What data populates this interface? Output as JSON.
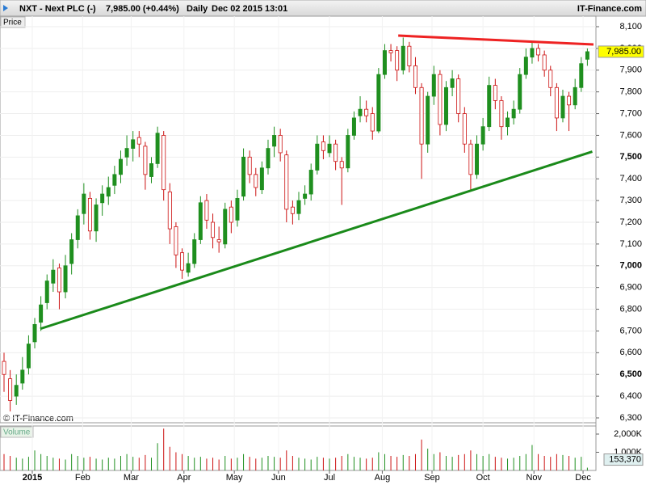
{
  "header": {
    "symbol": "NXT - Next PLC (-)",
    "quote": "7,985.00 (+0.44%)",
    "period": "Daily",
    "datetime": "Dec 02 2015 13:01",
    "site": "IT-Finance.com",
    "price_label": "Price",
    "volume_label": "Volume",
    "watermark": "© IT-Finance.com"
  },
  "chart_data": {
    "type": "candlestick",
    "xlim": [
      0,
      96
    ],
    "xticks": [
      {
        "value": 4.6,
        "label": "2015"
      },
      {
        "value": 12.8,
        "label": "Feb"
      },
      {
        "value": 20.7,
        "label": "Mar"
      },
      {
        "value": 29.3,
        "label": "Apr"
      },
      {
        "value": 37.5,
        "label": "May"
      },
      {
        "value": 44.7,
        "label": "Jun"
      },
      {
        "value": 53,
        "label": "Jul"
      },
      {
        "value": 61.6,
        "label": "Aug"
      },
      {
        "value": 69.7,
        "label": "Sep"
      },
      {
        "value": 78,
        "label": "Oct"
      },
      {
        "value": 86.3,
        "label": "Nov"
      },
      {
        "value": 94.3,
        "label": "Dec"
      }
    ],
    "ylim": [
      6300,
      8100
    ],
    "yticks": [
      {
        "value": 6300,
        "label": "6,300"
      },
      {
        "value": 6400,
        "label": "6,400"
      },
      {
        "value": 6500,
        "label": "6,500"
      },
      {
        "value": 6600,
        "label": "6,600"
      },
      {
        "value": 6700,
        "label": "6,700"
      },
      {
        "value": 6800,
        "label": "6,800"
      },
      {
        "value": 6900,
        "label": "6,900"
      },
      {
        "value": 7000,
        "label": "7,000"
      },
      {
        "value": 7100,
        "label": "7,100"
      },
      {
        "value": 7200,
        "label": "7,200"
      },
      {
        "value": 7300,
        "label": "7,300"
      },
      {
        "value": 7400,
        "label": "7,400"
      },
      {
        "value": 7500,
        "label": "7,500"
      },
      {
        "value": 7600,
        "label": "7,600"
      },
      {
        "value": 7700,
        "label": "7,700"
      },
      {
        "value": 7800,
        "label": "7,800"
      },
      {
        "value": 7900,
        "label": "7,900"
      },
      {
        "value": 8000,
        "label": "8,000"
      },
      {
        "value": 8100,
        "label": "8,100"
      }
    ],
    "up_color": "#1f8f1f",
    "down_color": "#cc1111",
    "last_price_label": "7,985.00",
    "ohlc": [
      [
        6560,
        6600,
        6420,
        6500
      ],
      [
        6480,
        6520,
        6330,
        6380
      ],
      [
        6400,
        6500,
        6360,
        6450
      ],
      [
        6460,
        6580,
        6430,
        6520
      ],
      [
        6530,
        6680,
        6500,
        6640
      ],
      [
        6650,
        6760,
        6620,
        6730
      ],
      [
        6740,
        6860,
        6700,
        6820
      ],
      [
        6830,
        6960,
        6800,
        6930
      ],
      [
        6920,
        7030,
        6880,
        6980
      ],
      [
        6990,
        7010,
        6800,
        6880
      ],
      [
        6880,
        7050,
        6850,
        7000
      ],
      [
        7010,
        7150,
        6960,
        7120
      ],
      [
        7120,
        7260,
        7080,
        7230
      ],
      [
        7240,
        7380,
        7190,
        7330
      ],
      [
        7310,
        7340,
        7120,
        7160
      ],
      [
        7160,
        7310,
        7110,
        7280
      ],
      [
        7290,
        7370,
        7230,
        7330
      ],
      [
        7320,
        7410,
        7280,
        7360
      ],
      [
        7370,
        7460,
        7330,
        7420
      ],
      [
        7420,
        7530,
        7380,
        7490
      ],
      [
        7500,
        7600,
        7460,
        7540
      ],
      [
        7540,
        7620,
        7480,
        7580
      ],
      [
        7590,
        7620,
        7500,
        7560
      ],
      [
        7550,
        7570,
        7350,
        7420
      ],
      [
        7410,
        7500,
        7380,
        7470
      ],
      [
        7470,
        7640,
        7450,
        7610
      ],
      [
        7600,
        7620,
        7300,
        7350
      ],
      [
        7340,
        7380,
        7100,
        7170
      ],
      [
        7180,
        7200,
        6990,
        7050
      ],
      [
        7060,
        7080,
        6940,
        6980
      ],
      [
        6970,
        7060,
        6950,
        7010
      ],
      [
        7010,
        7150,
        6990,
        7120
      ],
      [
        7120,
        7320,
        7100,
        7290
      ],
      [
        7300,
        7330,
        7170,
        7210
      ],
      [
        7200,
        7240,
        7080,
        7130
      ],
      [
        7120,
        7180,
        7060,
        7110
      ],
      [
        7100,
        7290,
        7080,
        7260
      ],
      [
        7270,
        7300,
        7150,
        7200
      ],
      [
        7210,
        7350,
        7180,
        7310
      ],
      [
        7320,
        7540,
        7300,
        7500
      ],
      [
        7500,
        7530,
        7380,
        7420
      ],
      [
        7420,
        7450,
        7320,
        7360
      ],
      [
        7350,
        7480,
        7330,
        7450
      ],
      [
        7450,
        7580,
        7420,
        7540
      ],
      [
        7550,
        7640,
        7500,
        7600
      ],
      [
        7600,
        7630,
        7480,
        7520
      ],
      [
        7510,
        7530,
        7200,
        7260
      ],
      [
        7270,
        7300,
        7190,
        7240
      ],
      [
        7240,
        7340,
        7210,
        7300
      ],
      [
        7310,
        7370,
        7280,
        7330
      ],
      [
        7330,
        7470,
        7300,
        7440
      ],
      [
        7440,
        7600,
        7420,
        7560
      ],
      [
        7570,
        7600,
        7490,
        7530
      ],
      [
        7520,
        7600,
        7500,
        7560
      ],
      [
        7560,
        7580,
        7440,
        7480
      ],
      [
        7480,
        7500,
        7280,
        7450
      ],
      [
        7450,
        7630,
        7430,
        7600
      ],
      [
        7600,
        7710,
        7580,
        7680
      ],
      [
        7690,
        7780,
        7660,
        7720
      ],
      [
        7720,
        7760,
        7660,
        7690
      ],
      [
        7700,
        7730,
        7580,
        7620
      ],
      [
        7620,
        7910,
        7610,
        7880
      ],
      [
        7880,
        8020,
        7860,
        7990
      ],
      [
        7990,
        8020,
        7940,
        7980
      ],
      [
        7990,
        8010,
        7850,
        7900
      ],
      [
        7900,
        8050,
        7880,
        8010
      ],
      [
        8010,
        8030,
        7890,
        7920
      ],
      [
        7920,
        7960,
        7790,
        7820
      ],
      [
        7820,
        7840,
        7400,
        7560
      ],
      [
        7560,
        7800,
        7520,
        7780
      ],
      [
        7780,
        7920,
        7740,
        7880
      ],
      [
        7880,
        7900,
        7600,
        7650
      ],
      [
        7650,
        7850,
        7620,
        7820
      ],
      [
        7820,
        7900,
        7780,
        7860
      ],
      [
        7860,
        7880,
        7660,
        7700
      ],
      [
        7700,
        7730,
        7520,
        7560
      ],
      [
        7560,
        7580,
        7350,
        7420
      ],
      [
        7420,
        7600,
        7400,
        7560
      ],
      [
        7560,
        7680,
        7530,
        7640
      ],
      [
        7640,
        7870,
        7620,
        7830
      ],
      [
        7830,
        7860,
        7720,
        7760
      ],
      [
        7760,
        7780,
        7580,
        7640
      ],
      [
        7640,
        7710,
        7600,
        7680
      ],
      [
        7680,
        7760,
        7650,
        7720
      ],
      [
        7720,
        7910,
        7700,
        7880
      ],
      [
        7880,
        8000,
        7860,
        7960
      ],
      [
        7960,
        8030,
        7930,
        8000
      ],
      [
        8000,
        8020,
        7940,
        7970
      ],
      [
        7970,
        7990,
        7870,
        7900
      ],
      [
        7900,
        7920,
        7780,
        7820
      ],
      [
        7820,
        7840,
        7620,
        7680
      ],
      [
        7680,
        7810,
        7660,
        7780
      ],
      [
        7780,
        7800,
        7620,
        7740
      ],
      [
        7740,
        7860,
        7720,
        7820
      ],
      [
        7820,
        7960,
        7800,
        7930
      ],
      [
        7950,
        8000,
        7920,
        7985
      ]
    ],
    "trendlines": [
      {
        "color": "#1a8a1a",
        "from": [
          5.9,
          6710
        ],
        "to": [
          95.8,
          7525
        ]
      },
      {
        "color": "#ee2222",
        "from": [
          64.2,
          8059
        ],
        "to": [
          96,
          8018
        ]
      }
    ],
    "volume": {
      "ylim": [
        0,
        2400000
      ],
      "yticks": [
        {
          "value": 1000000,
          "label": "1,000K"
        },
        {
          "value": 2000000,
          "label": "2,000K"
        }
      ],
      "last_label": "153,370",
      "values": [
        900000,
        800000,
        700000,
        650000,
        750000,
        1100000,
        900000,
        800000,
        700000,
        650000,
        600000,
        900000,
        800000,
        700000,
        750000,
        650000,
        600000,
        700000,
        650000,
        800000,
        900000,
        750000,
        700000,
        850000,
        700000,
        1500000,
        2300000,
        1300000,
        1000000,
        900000,
        800000,
        700000,
        750000,
        650000,
        700000,
        600000,
        800000,
        650000,
        700000,
        900000,
        750000,
        650000,
        700000,
        800000,
        750000,
        700000,
        1100000,
        800000,
        700000,
        650000,
        600000,
        750000,
        700000,
        650000,
        700000,
        800000,
        900000,
        750000,
        700000,
        650000,
        700000,
        1000000,
        900000,
        800000,
        750000,
        850000,
        800000,
        900000,
        1700000,
        1200000,
        900000,
        1000000,
        800000,
        750000,
        850000,
        900000,
        1100000,
        900000,
        800000,
        900000,
        750000,
        700000,
        650000,
        700000,
        800000,
        900000,
        1400000,
        900000,
        800000,
        750000,
        900000,
        850000,
        800000,
        700000,
        750000,
        153370
      ]
    }
  }
}
